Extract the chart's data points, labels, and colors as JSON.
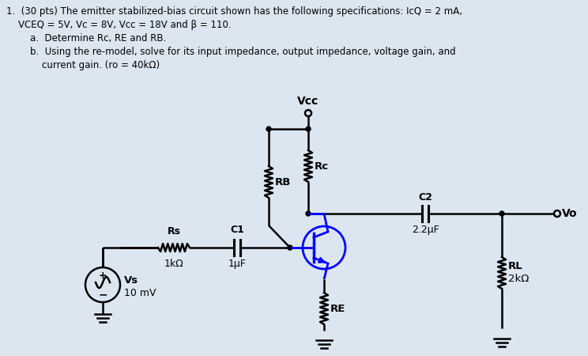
{
  "bg_color": "#dce6f1",
  "line_color": "black",
  "transistor_color": "blue",
  "header_line1": "1.  (30 pts) The emitter stabilized-bias circuit shown has the following specifications: Icₒ = 2 mA,",
  "header_line2": "    Vceₒ = 5V, Vc = 8V, Vcc = 18V and β = 110.",
  "header_line3": "        a.  Determine Rc, RE and RB.",
  "header_line4": "        b.  Using the re-model, solve for its input impedance, output impedance, voltage gain, and",
  "header_line5": "            current gain. (ro = 40kΩ)"
}
